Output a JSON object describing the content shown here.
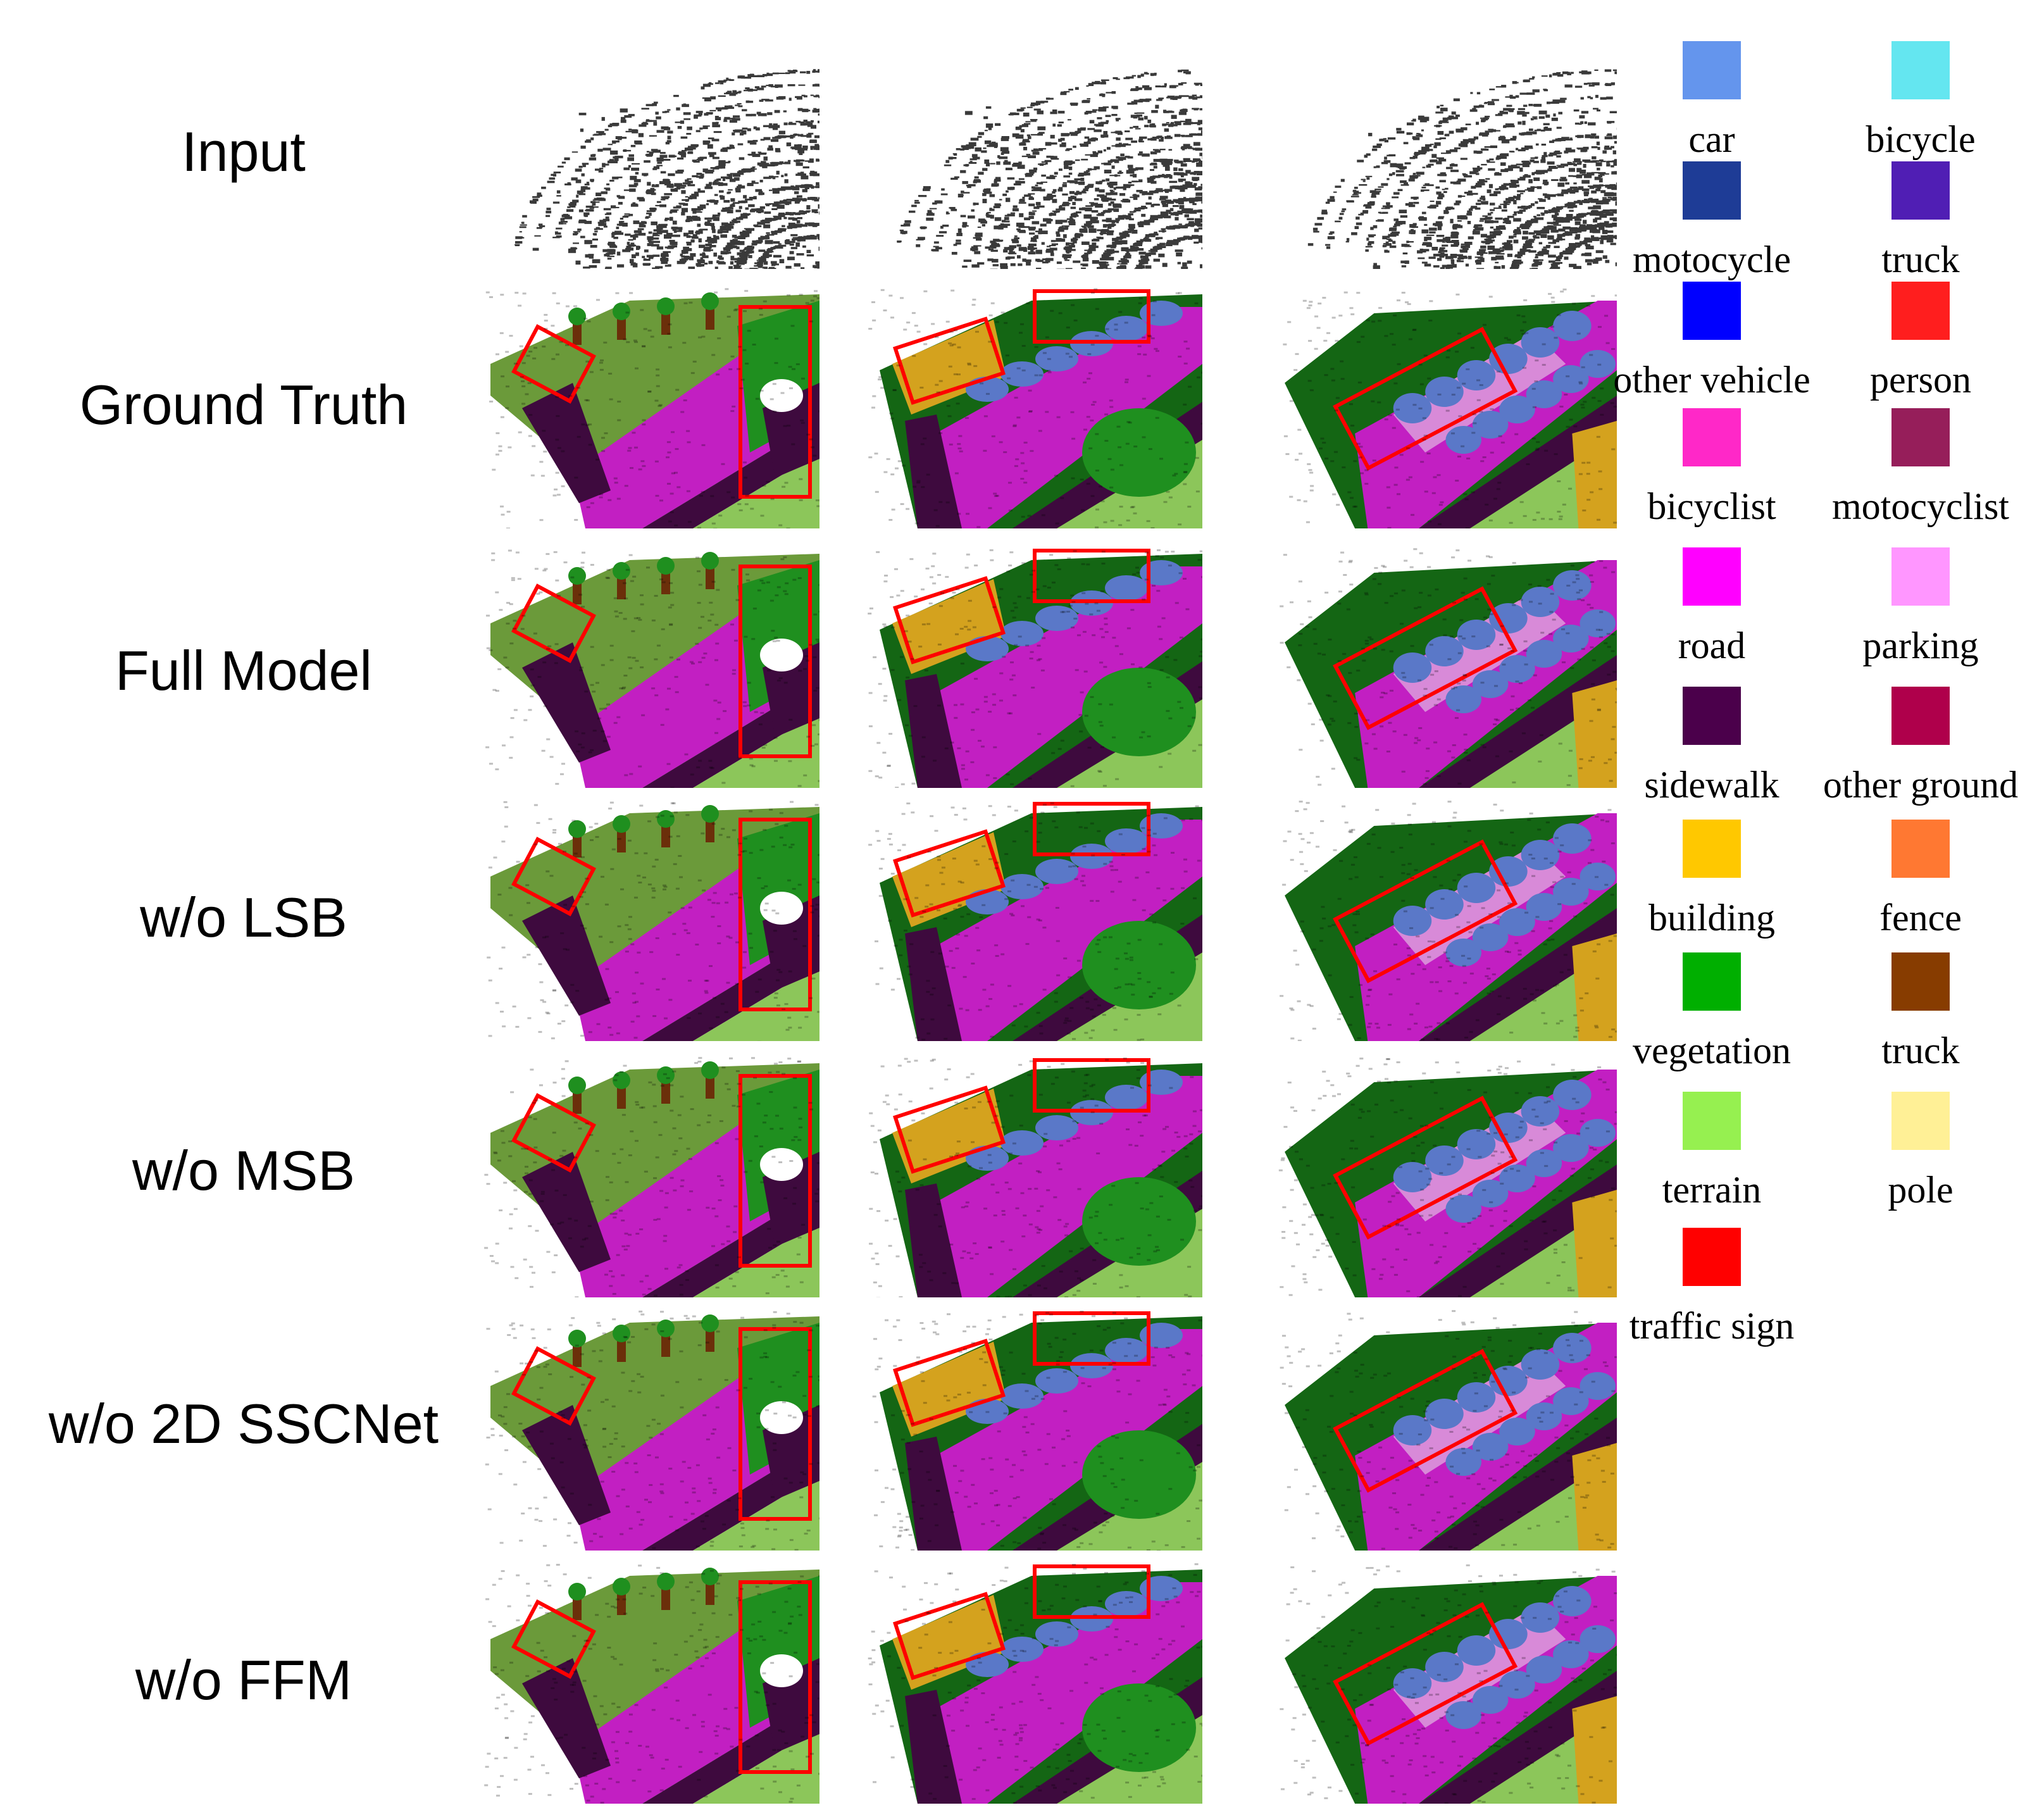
{
  "rows": [
    {
      "label": "Input",
      "kind": "input"
    },
    {
      "label": "Ground Truth",
      "kind": "semantic"
    },
    {
      "label": "Full Model",
      "kind": "semantic"
    },
    {
      "label": "w/o LSB",
      "kind": "semantic"
    },
    {
      "label": "w/o MSB",
      "kind": "semantic"
    },
    {
      "label": "w/o 2D SSCNet",
      "kind": "semantic"
    },
    {
      "label": "w/o FFM",
      "kind": "semantic"
    }
  ],
  "legend": [
    {
      "label": "car",
      "color": "#6495ed"
    },
    {
      "label": "bicycle",
      "color": "#64e6f0"
    },
    {
      "label": "motocycle",
      "color": "#1e3c96"
    },
    {
      "label": "truck",
      "color": "#501eb4"
    },
    {
      "label": "other vehicle",
      "color": "#0000ff"
    },
    {
      "label": "person",
      "color": "#ff1e1e"
    },
    {
      "label": "bicyclist",
      "color": "#ff28c8"
    },
    {
      "label": "motocyclist",
      "color": "#961e5a"
    },
    {
      "label": "road",
      "color": "#ff00ff"
    },
    {
      "label": "parking",
      "color": "#ff96ff"
    },
    {
      "label": "sidewalk",
      "color": "#4b004b"
    },
    {
      "label": "other ground",
      "color": "#af004b"
    },
    {
      "label": "building",
      "color": "#ffc800"
    },
    {
      "label": "fence",
      "color": "#ff7832"
    },
    {
      "label": "vegetation",
      "color": "#00af00"
    },
    {
      "label": "truck",
      "color": "#873c00"
    },
    {
      "label": "terrain",
      "color": "#96f050"
    },
    {
      "label": "pole",
      "color": "#fff096"
    },
    {
      "label": "traffic sign",
      "color": "#ff0000"
    }
  ],
  "colors": {
    "input_points": "#3a3a3a",
    "ground_green": "#6b9a3a",
    "road": "#c21fc2",
    "sidewalk": "#3e0a3e",
    "terrain": "#8cc65a",
    "vegetation": "#1f8f1f",
    "vegetation_dark": "#146614",
    "car": "#5a78c8",
    "trunk": "#6b2f0a",
    "building": "#d4a21e",
    "highlight_box": "#ff0000"
  }
}
